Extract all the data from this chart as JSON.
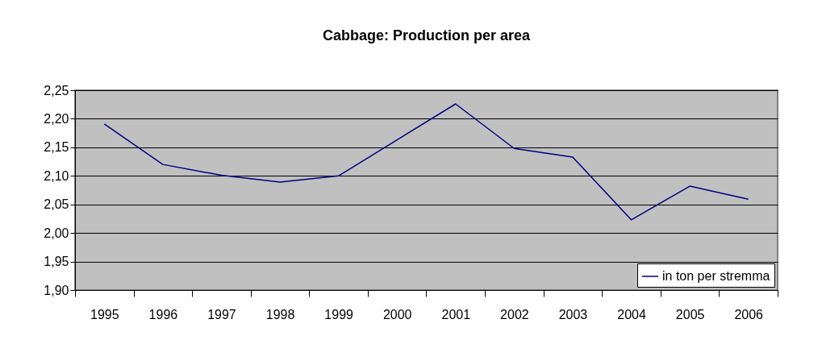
{
  "chart_data": {
    "type": "line",
    "title": "Cabbage: Production per area",
    "categories": [
      "1995",
      "1996",
      "1997",
      "1998",
      "1999",
      "2000",
      "2001",
      "2002",
      "2003",
      "2004",
      "2005",
      "2006"
    ],
    "series": [
      {
        "name": "in ton per stremma",
        "color": "#000080",
        "values": [
          2.191,
          2.12,
          2.101,
          2.089,
          2.1,
          2.163,
          2.226,
          2.148,
          2.133,
          2.023,
          2.082,
          2.059
        ]
      }
    ],
    "ylim": [
      1.9,
      2.25
    ],
    "yticks": [
      {
        "value": 1.9,
        "label": "1,90"
      },
      {
        "value": 1.95,
        "label": "1,95"
      },
      {
        "value": 2.0,
        "label": "2,00"
      },
      {
        "value": 2.05,
        "label": "2,05"
      },
      {
        "value": 2.1,
        "label": "2,10"
      },
      {
        "value": 2.15,
        "label": "2,15"
      },
      {
        "value": 2.2,
        "label": "2,20"
      },
      {
        "value": 2.25,
        "label": "2,25"
      }
    ],
    "grid": "y",
    "legend": "bottom right",
    "marker": "none",
    "line_style": "solid"
  }
}
